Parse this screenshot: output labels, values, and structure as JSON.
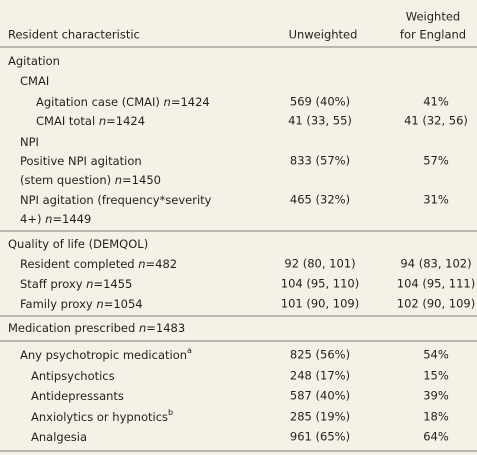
{
  "header": {
    "characteristic": "Resident characteristic",
    "unweighted": "Unweighted",
    "weighted": [
      "Weighted",
      "for England"
    ]
  },
  "rows": [
    {
      "label": [
        [
          "Agitation"
        ]
      ]
    },
    {
      "label": [
        [
          "CMAI"
        ]
      ]
    },
    {
      "label": [
        [
          "Agitation case (CMAI) ",
          {
            "text": "n",
            "style": "italic"
          },
          "=1424"
        ]
      ],
      "unweighted": "569 (40%)",
      "weighted": "41%"
    },
    {
      "label": [
        [
          "CMAI total ",
          {
            "text": "n",
            "style": "italic"
          },
          "=1424"
        ]
      ],
      "unweighted": "41 (33, 55)",
      "weighted": "41 (32, 56)"
    },
    {
      "label": [
        [
          "NPI"
        ]
      ]
    },
    {
      "label": [
        [
          "Positive NPI agitation"
        ],
        [
          "(stem question) ",
          {
            "text": "n",
            "style": "italic"
          },
          "=1450"
        ]
      ],
      "unweighted": "833 (57%)",
      "weighted": "57%"
    },
    {
      "label": [
        [
          "NPI agitation (frequency*severity"
        ],
        [
          "4+) ",
          {
            "text": "n",
            "style": "italic"
          },
          "=1449"
        ]
      ],
      "unweighted": "465 (32%)",
      "weighted": "31%"
    },
    {
      "label": [
        [
          "Quality of life (DEMQOL)"
        ]
      ]
    },
    {
      "label": [
        [
          "Resident completed ",
          {
            "text": "n",
            "style": "italic"
          },
          "=482"
        ]
      ],
      "unweighted": "92 (80, 101)",
      "weighted": "94 (83, 102)"
    },
    {
      "label": [
        [
          "Staff proxy ",
          {
            "text": "n",
            "style": "italic"
          },
          "=1455"
        ]
      ],
      "unweighted": "104 (95, 110)",
      "weighted": "104 (95, 111)"
    },
    {
      "label": [
        [
          "Family proxy ",
          {
            "text": "n",
            "style": "italic"
          },
          "=1054"
        ]
      ],
      "unweighted": "101 (90, 109)",
      "weighted": "102 (90, 109)"
    },
    {
      "label": [
        [
          "Medication prescribed ",
          {
            "text": "n",
            "style": "italic"
          },
          "=1483"
        ]
      ]
    },
    {
      "label": [
        [
          "Any psychotropic medication",
          {
            "text": "a",
            "style": "sup"
          }
        ]
      ],
      "unweighted": "825 (56%)",
      "weighted": "54%"
    },
    {
      "label": [
        [
          "Antipsychotics"
        ]
      ],
      "unweighted": "248 (17%)",
      "weighted": "15%"
    },
    {
      "label": [
        [
          "Antidepressants"
        ]
      ],
      "unweighted": "587 (40%)",
      "weighted": "39%"
    },
    {
      "label": [
        [
          "Anxiolytics or hypnotics",
          {
            "text": "b",
            "style": "sup"
          }
        ]
      ],
      "unweighted": "285 (19%)",
      "weighted": "18%"
    },
    {
      "label": [
        [
          "Analgesia"
        ]
      ],
      "unweighted": "961 (65%)",
      "weighted": "64%"
    }
  ]
}
